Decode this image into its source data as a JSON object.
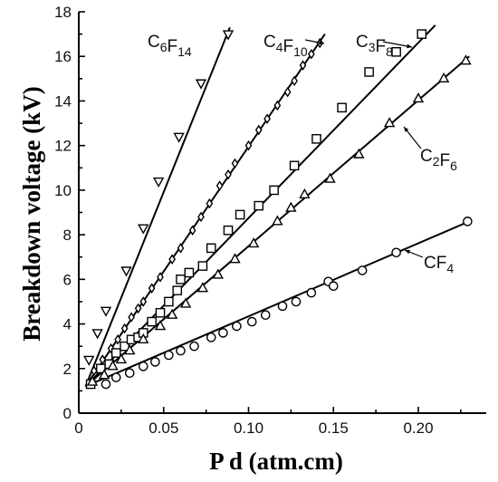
{
  "chart_data": {
    "type": "scatter",
    "xlabel": "P d (atm.cm)",
    "ylabel": "Breakdown voltage (kV)",
    "xlim": [
      0,
      0.24
    ],
    "ylim": [
      0,
      18
    ],
    "x_ticks": [
      0,
      0.05,
      0.1,
      0.15,
      0.2
    ],
    "x_tick_labels": [
      "0",
      "0.05",
      "0.10",
      "0.15",
      "0.20"
    ],
    "y_ticks": [
      0,
      2,
      4,
      6,
      8,
      10,
      12,
      14,
      16,
      18
    ],
    "y_tick_labels": [
      "0",
      "2",
      "4",
      "6",
      "8",
      "10",
      "12",
      "14",
      "16",
      "18"
    ],
    "grid": false,
    "legend": "inline labels",
    "series": [
      {
        "name": "C6F14",
        "marker": "triangle-down",
        "fit": [
          [
            0.004,
            1.2
          ],
          [
            0.089,
            17.3
          ]
        ],
        "x": [
          0.006,
          0.011,
          0.016,
          0.028,
          0.038,
          0.047,
          0.059,
          0.072,
          0.088
        ],
        "y": [
          2.4,
          3.6,
          4.6,
          6.4,
          8.3,
          10.4,
          12.4,
          14.8,
          17.0
        ]
      },
      {
        "name": "C4F10",
        "marker": "diamond",
        "fit": [
          [
            0.004,
            1.2
          ],
          [
            0.145,
            17.0
          ]
        ],
        "x": [
          0.009,
          0.014,
          0.019,
          0.023,
          0.027,
          0.031,
          0.035,
          0.038,
          0.043,
          0.048,
          0.055,
          0.06,
          0.067,
          0.072,
          0.077,
          0.083,
          0.088,
          0.092,
          0.1,
          0.106,
          0.111,
          0.117,
          0.123,
          0.127,
          0.132,
          0.137,
          0.142
        ],
        "y": [
          1.9,
          2.4,
          2.9,
          3.3,
          3.8,
          4.3,
          4.7,
          5.0,
          5.6,
          6.1,
          6.9,
          7.4,
          8.2,
          8.8,
          9.4,
          10.2,
          10.7,
          11.2,
          12.0,
          12.7,
          13.2,
          13.8,
          14.4,
          14.9,
          15.6,
          16.1,
          16.6
        ]
      },
      {
        "name": "C3F8",
        "marker": "square",
        "fit": [
          [
            0.004,
            1.2
          ],
          [
            0.21,
            17.4
          ]
        ],
        "x": [
          0.007,
          0.013,
          0.018,
          0.022,
          0.027,
          0.031,
          0.035,
          0.038,
          0.043,
          0.048,
          0.053,
          0.058,
          0.06,
          0.065,
          0.073,
          0.078,
          0.088,
          0.095,
          0.106,
          0.115,
          0.127,
          0.14,
          0.155,
          0.171,
          0.187,
          0.202
        ],
        "y": [
          1.3,
          2.0,
          2.2,
          2.7,
          3.0,
          3.3,
          3.4,
          3.6,
          4.1,
          4.5,
          5.0,
          5.5,
          6.0,
          6.3,
          6.6,
          7.4,
          8.2,
          8.9,
          9.3,
          10.0,
          11.1,
          12.3,
          13.7,
          15.3,
          16.2,
          17.0
        ]
      },
      {
        "name": "C2F6",
        "marker": "triangle-up",
        "fit": [
          [
            0.004,
            1.2
          ],
          [
            0.23,
            16.0
          ]
        ],
        "x": [
          0.008,
          0.015,
          0.02,
          0.025,
          0.03,
          0.038,
          0.048,
          0.055,
          0.063,
          0.073,
          0.082,
          0.092,
          0.103,
          0.117,
          0.125,
          0.133,
          0.148,
          0.165,
          0.183,
          0.2,
          0.215,
          0.228
        ],
        "y": [
          1.4,
          1.7,
          2.1,
          2.4,
          2.8,
          3.3,
          3.9,
          4.4,
          4.9,
          5.6,
          6.2,
          6.9,
          7.6,
          8.6,
          9.2,
          9.8,
          10.5,
          11.6,
          13.0,
          14.1,
          15.0,
          15.8
        ]
      },
      {
        "name": "CF4",
        "marker": "circle",
        "fit": [
          [
            0.004,
            1.2
          ],
          [
            0.23,
            8.6
          ]
        ],
        "x": [
          0.016,
          0.022,
          0.03,
          0.038,
          0.045,
          0.053,
          0.06,
          0.068,
          0.078,
          0.085,
          0.093,
          0.102,
          0.11,
          0.12,
          0.128,
          0.137,
          0.147,
          0.15,
          0.167,
          0.187,
          0.229
        ],
        "y": [
          1.3,
          1.6,
          1.8,
          2.1,
          2.3,
          2.6,
          2.8,
          3.0,
          3.4,
          3.6,
          3.9,
          4.1,
          4.4,
          4.8,
          5.0,
          5.4,
          5.9,
          5.7,
          6.4,
          7.2,
          8.6
        ]
      }
    ]
  }
}
